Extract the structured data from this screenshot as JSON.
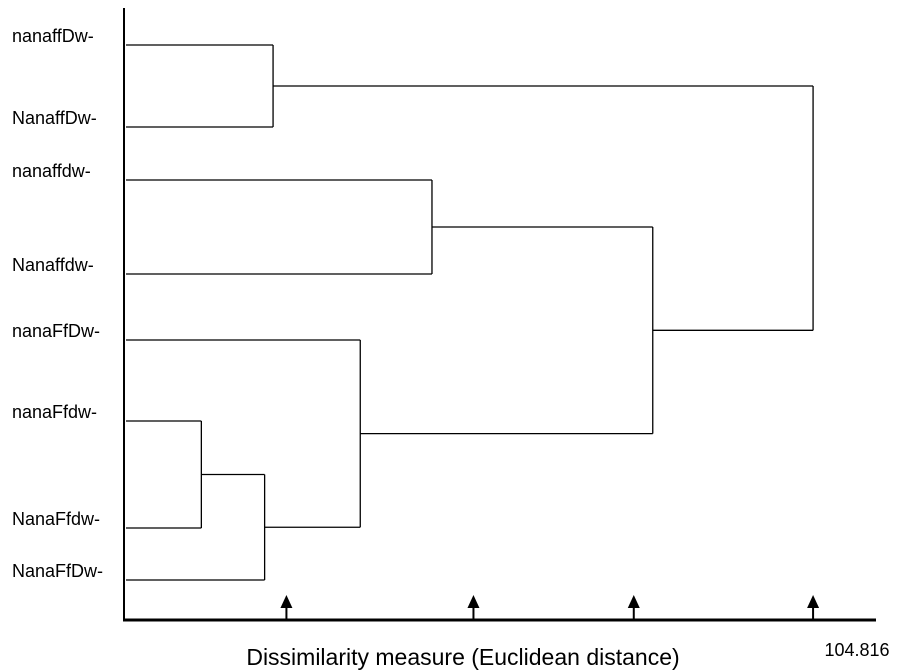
{
  "chart_data": {
    "type": "dendrogram",
    "leaves": [
      "nanaffDw-",
      "NanaffDw-",
      "nanaffdw-",
      "Nanaffdw-",
      "nanaFfDw-",
      "nanaFfdw-",
      "NanaFfdw-",
      "NanaFfDw-"
    ],
    "xlabel": "Dissimilarity measure (Euclidean distance)",
    "x_max_label": "104.816",
    "x_range": [
      0,
      104.816
    ],
    "merges": [
      {
        "id": "m1",
        "children": [
          "L5",
          "L6"
        ],
        "height": 11.0
      },
      {
        "id": "m2",
        "children": [
          "m1",
          "L7"
        ],
        "height": 20.0
      },
      {
        "id": "m3",
        "children": [
          "L4",
          "m2"
        ],
        "height": 33.6
      },
      {
        "id": "m4",
        "children": [
          "L0",
          "L1"
        ],
        "height": 21.2
      },
      {
        "id": "m5",
        "children": [
          "L2",
          "L3"
        ],
        "height": 43.8
      },
      {
        "id": "m6",
        "children": [
          "m5",
          "m3"
        ],
        "height": 75.2
      },
      {
        "id": "m7",
        "children": [
          "m4",
          "m6"
        ],
        "height": 98.0
      }
    ],
    "axis_arrows": [
      23.1,
      49.7,
      72.5,
      98.0
    ]
  },
  "colors": {
    "line": "#000000",
    "background": "#ffffff"
  }
}
